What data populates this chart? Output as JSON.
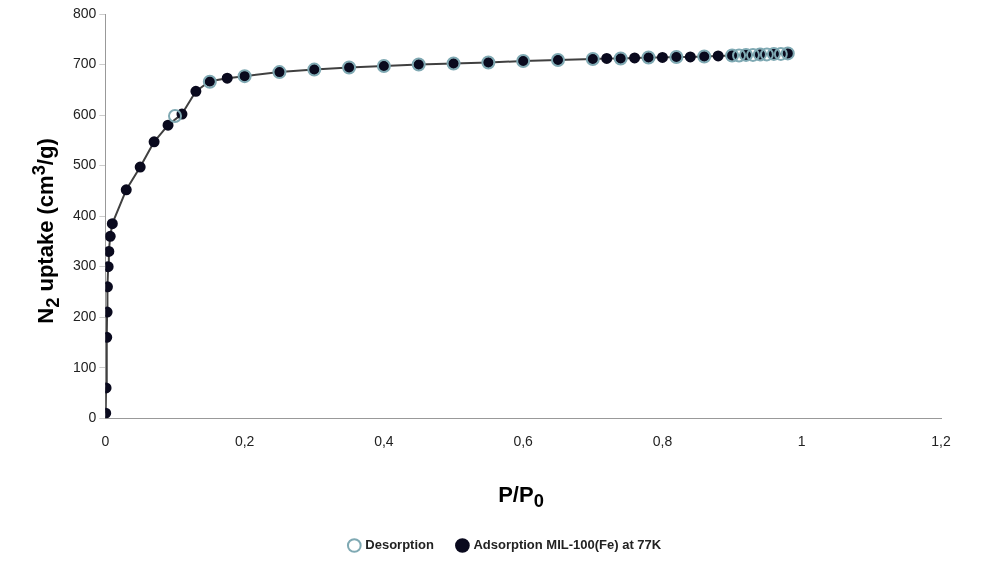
{
  "chart_data": {
    "type": "scatter",
    "xlabel": "P/P$_{0}$",
    "ylabel": "N$_{2}$ uptake (cm$^{3}$/g)",
    "xlim": [
      0,
      1.2
    ],
    "xticks": [
      0,
      {
        "value": 0.2,
        "label": "0,2"
      },
      {
        "value": 0.4,
        "label": "0,4"
      },
      {
        "value": 0.6,
        "label": "0,6"
      },
      {
        "value": 0.8,
        "label": "0,8"
      },
      1,
      {
        "value": 1.2,
        "label": "1,2"
      }
    ],
    "ylim": [
      0,
      800
    ],
    "yticks": [
      0,
      100,
      200,
      300,
      400,
      500,
      600,
      700,
      800
    ],
    "grid": false,
    "legend": "bottom",
    "marker": "circle",
    "series": [
      {
        "name": "Adsorption MIL-100(Fe) at 77K",
        "type": "line",
        "color": "#0a0a1e",
        "x": [
          0.0005,
          0.001,
          0.002,
          0.0025,
          0.003,
          0.004,
          0.005,
          0.007,
          0.01,
          0.03,
          0.05,
          0.07,
          0.09,
          0.11,
          0.13,
          0.15,
          0.175,
          0.2,
          0.25,
          0.3,
          0.35,
          0.4,
          0.45,
          0.5,
          0.55,
          0.6,
          0.65,
          0.7,
          0.72,
          0.74,
          0.76,
          0.78,
          0.8,
          0.82,
          0.84,
          0.86,
          0.88,
          0.9,
          0.92,
          0.94,
          0.96,
          0.98
        ],
        "values": [
          10,
          60,
          160,
          210,
          260,
          300,
          330,
          360,
          385,
          452,
          497,
          547,
          580,
          602,
          647,
          667,
          673,
          677,
          685,
          690,
          694,
          697,
          700,
          702,
          704,
          707,
          709,
          711,
          712,
          712,
          713,
          714,
          714,
          715,
          715,
          716,
          717,
          718,
          719,
          720,
          721,
          722
        ]
      },
      {
        "name": "Desorption",
        "type": "scatter",
        "color": "#7fa9b3",
        "x": [
          0.98,
          0.97,
          0.96,
          0.95,
          0.94,
          0.93,
          0.92,
          0.91,
          0.9,
          0.86,
          0.82,
          0.78,
          0.74,
          0.7,
          0.65,
          0.6,
          0.55,
          0.5,
          0.45,
          0.4,
          0.35,
          0.3,
          0.25,
          0.2,
          0.15,
          0.1
        ],
        "values": [
          722,
          721,
          721,
          720,
          720,
          719,
          719,
          718,
          718,
          716,
          715,
          714,
          712,
          711,
          709,
          707,
          704,
          702,
          700,
          697,
          694,
          690,
          685,
          677,
          666,
          598
        ]
      }
    ]
  }
}
